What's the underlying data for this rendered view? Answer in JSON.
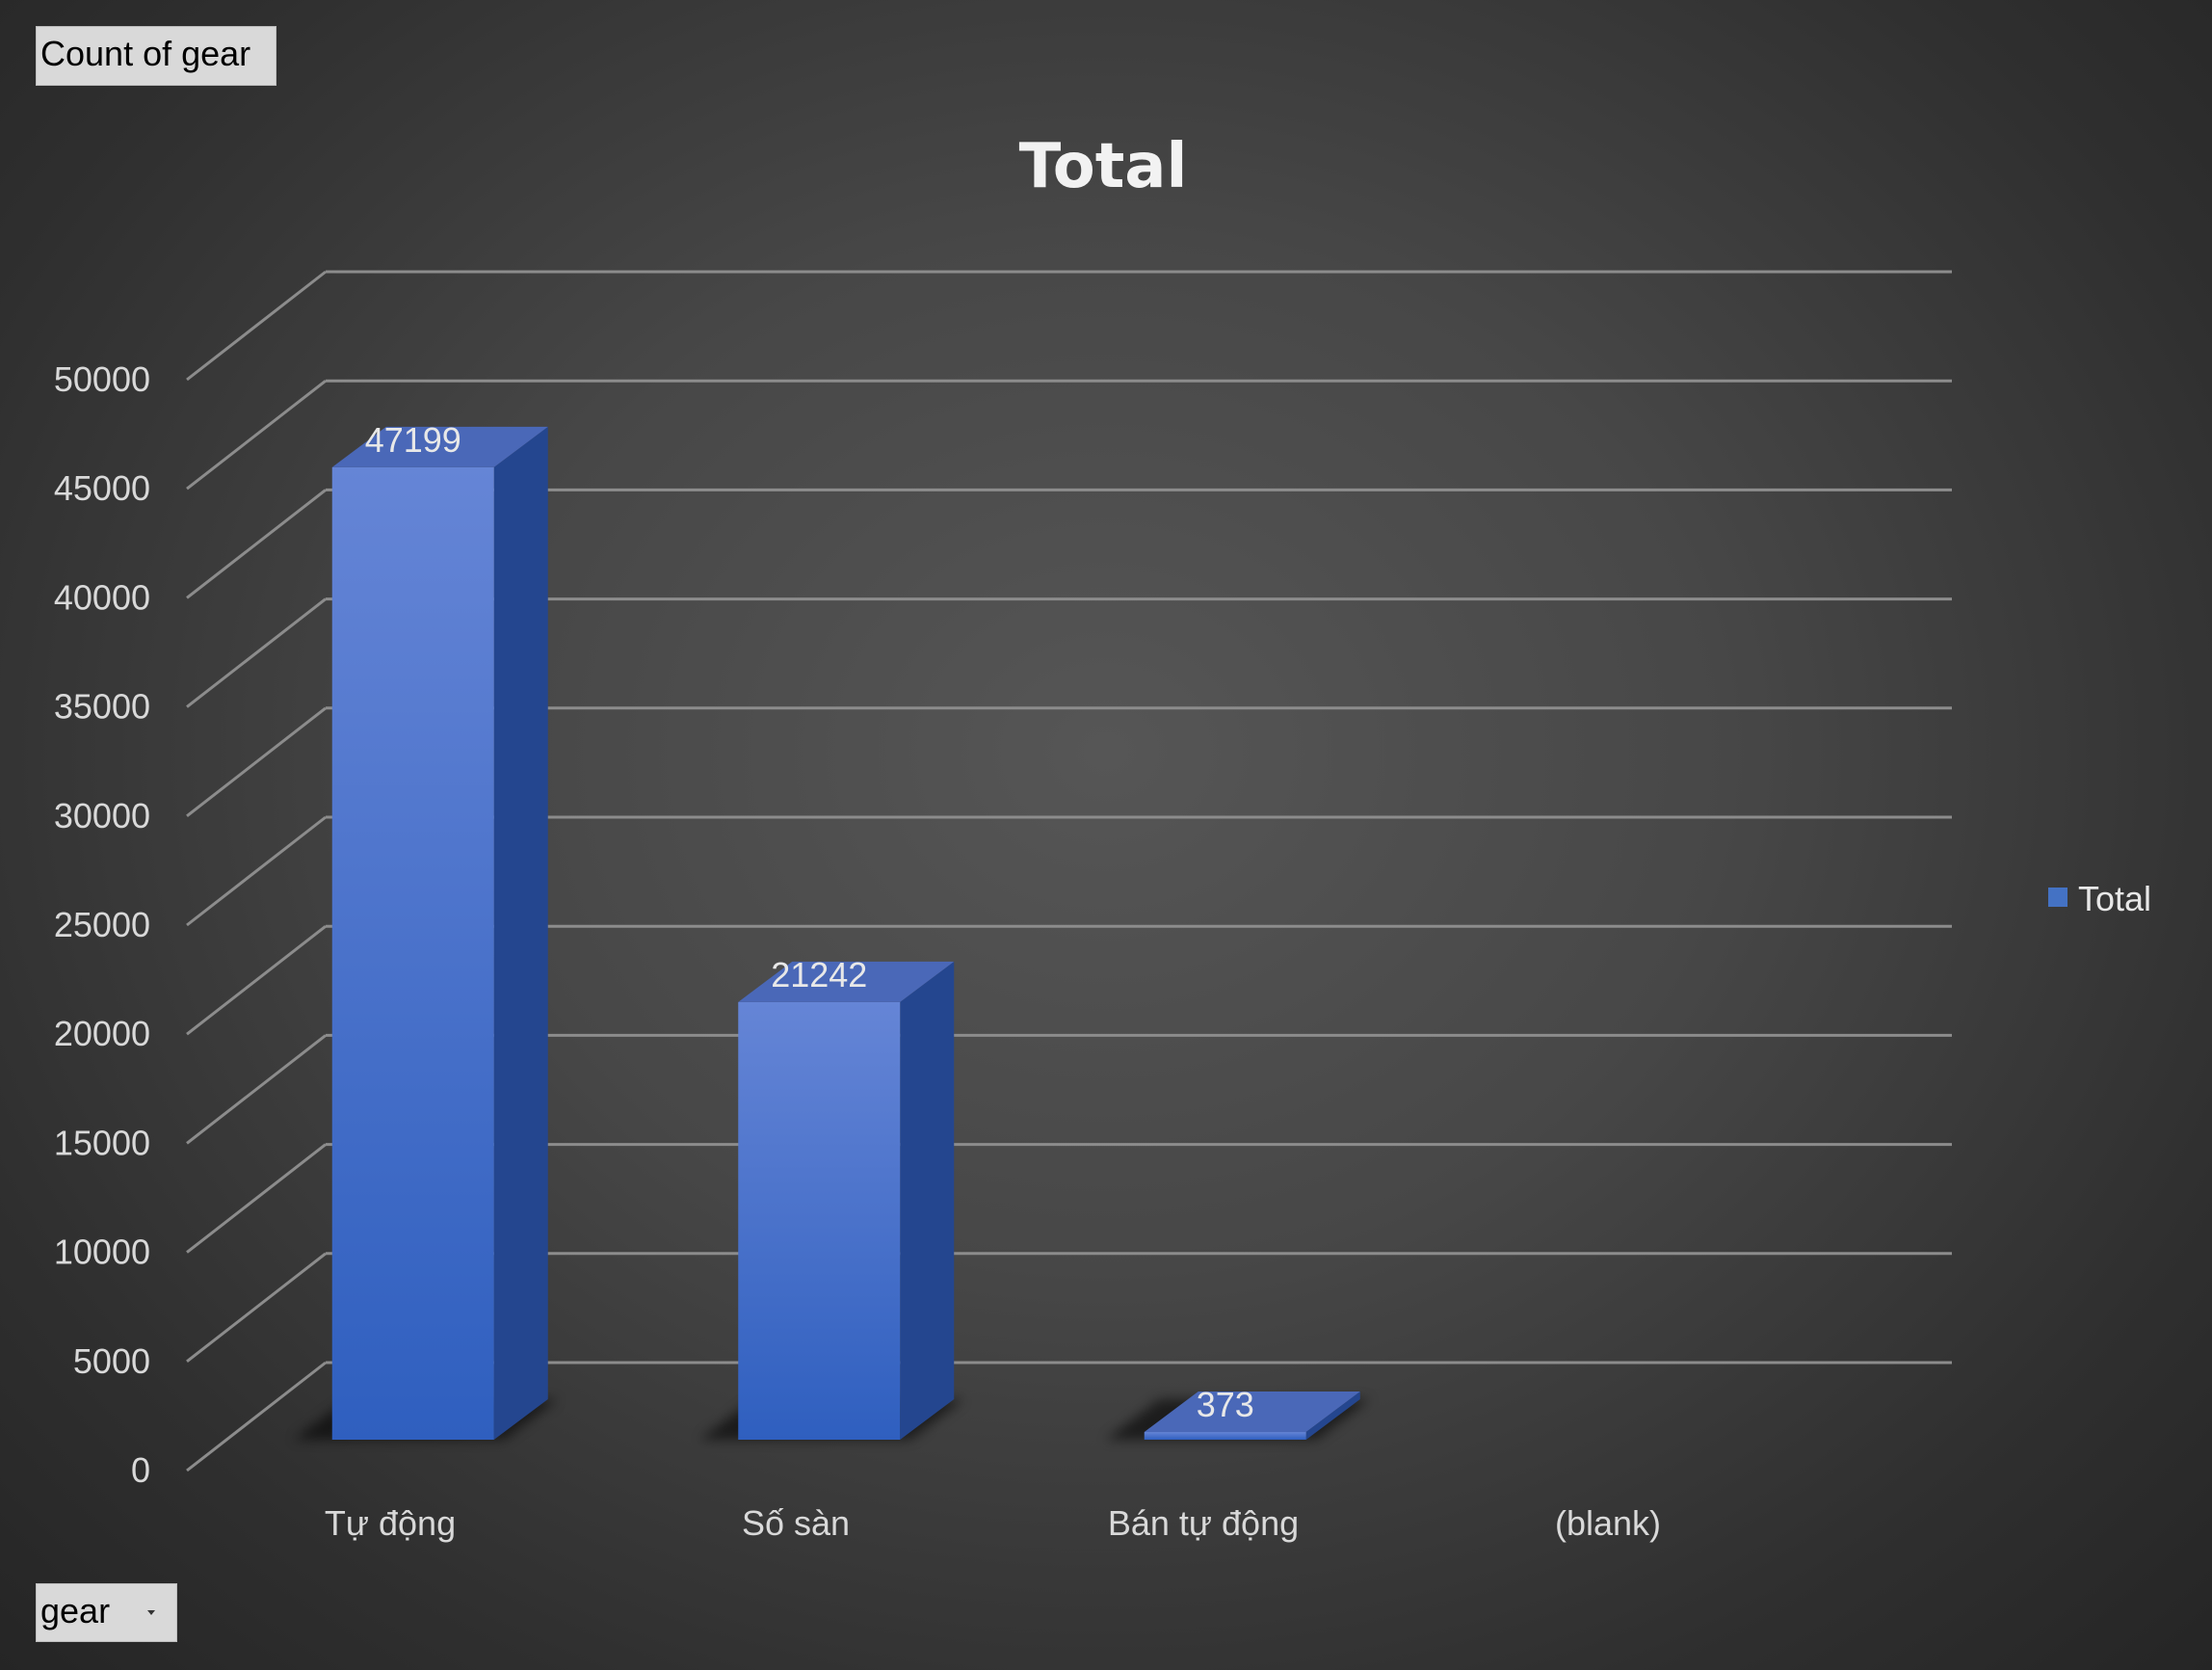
{
  "pivot": {
    "value_field": "Count of gear",
    "axis_field": "gear"
  },
  "chart_data": {
    "type": "bar",
    "title": "Total",
    "xlabel": "",
    "ylabel": "",
    "categories": [
      "Tự động",
      "Số sàn",
      "Bán tự động",
      "(blank)"
    ],
    "series": [
      {
        "name": "Total",
        "values": [
          47199,
          21242,
          373,
          null
        ]
      }
    ],
    "data_labels": [
      "47199",
      "21242",
      "373",
      ""
    ],
    "ylim": [
      0,
      50000
    ],
    "yticks": [
      0,
      5000,
      10000,
      15000,
      20000,
      25000,
      30000,
      35000,
      40000,
      45000,
      50000
    ],
    "grid": true,
    "legend_position": "right",
    "three_d": true,
    "colors": {
      "bar_front_top": "#6585d6",
      "bar_front_bottom": "#2f5fbf",
      "bar_side": "#24468f",
      "bar_top": "#4a68b8",
      "grid": "#8c8c8c",
      "legend_swatch": "#4472c4"
    }
  }
}
